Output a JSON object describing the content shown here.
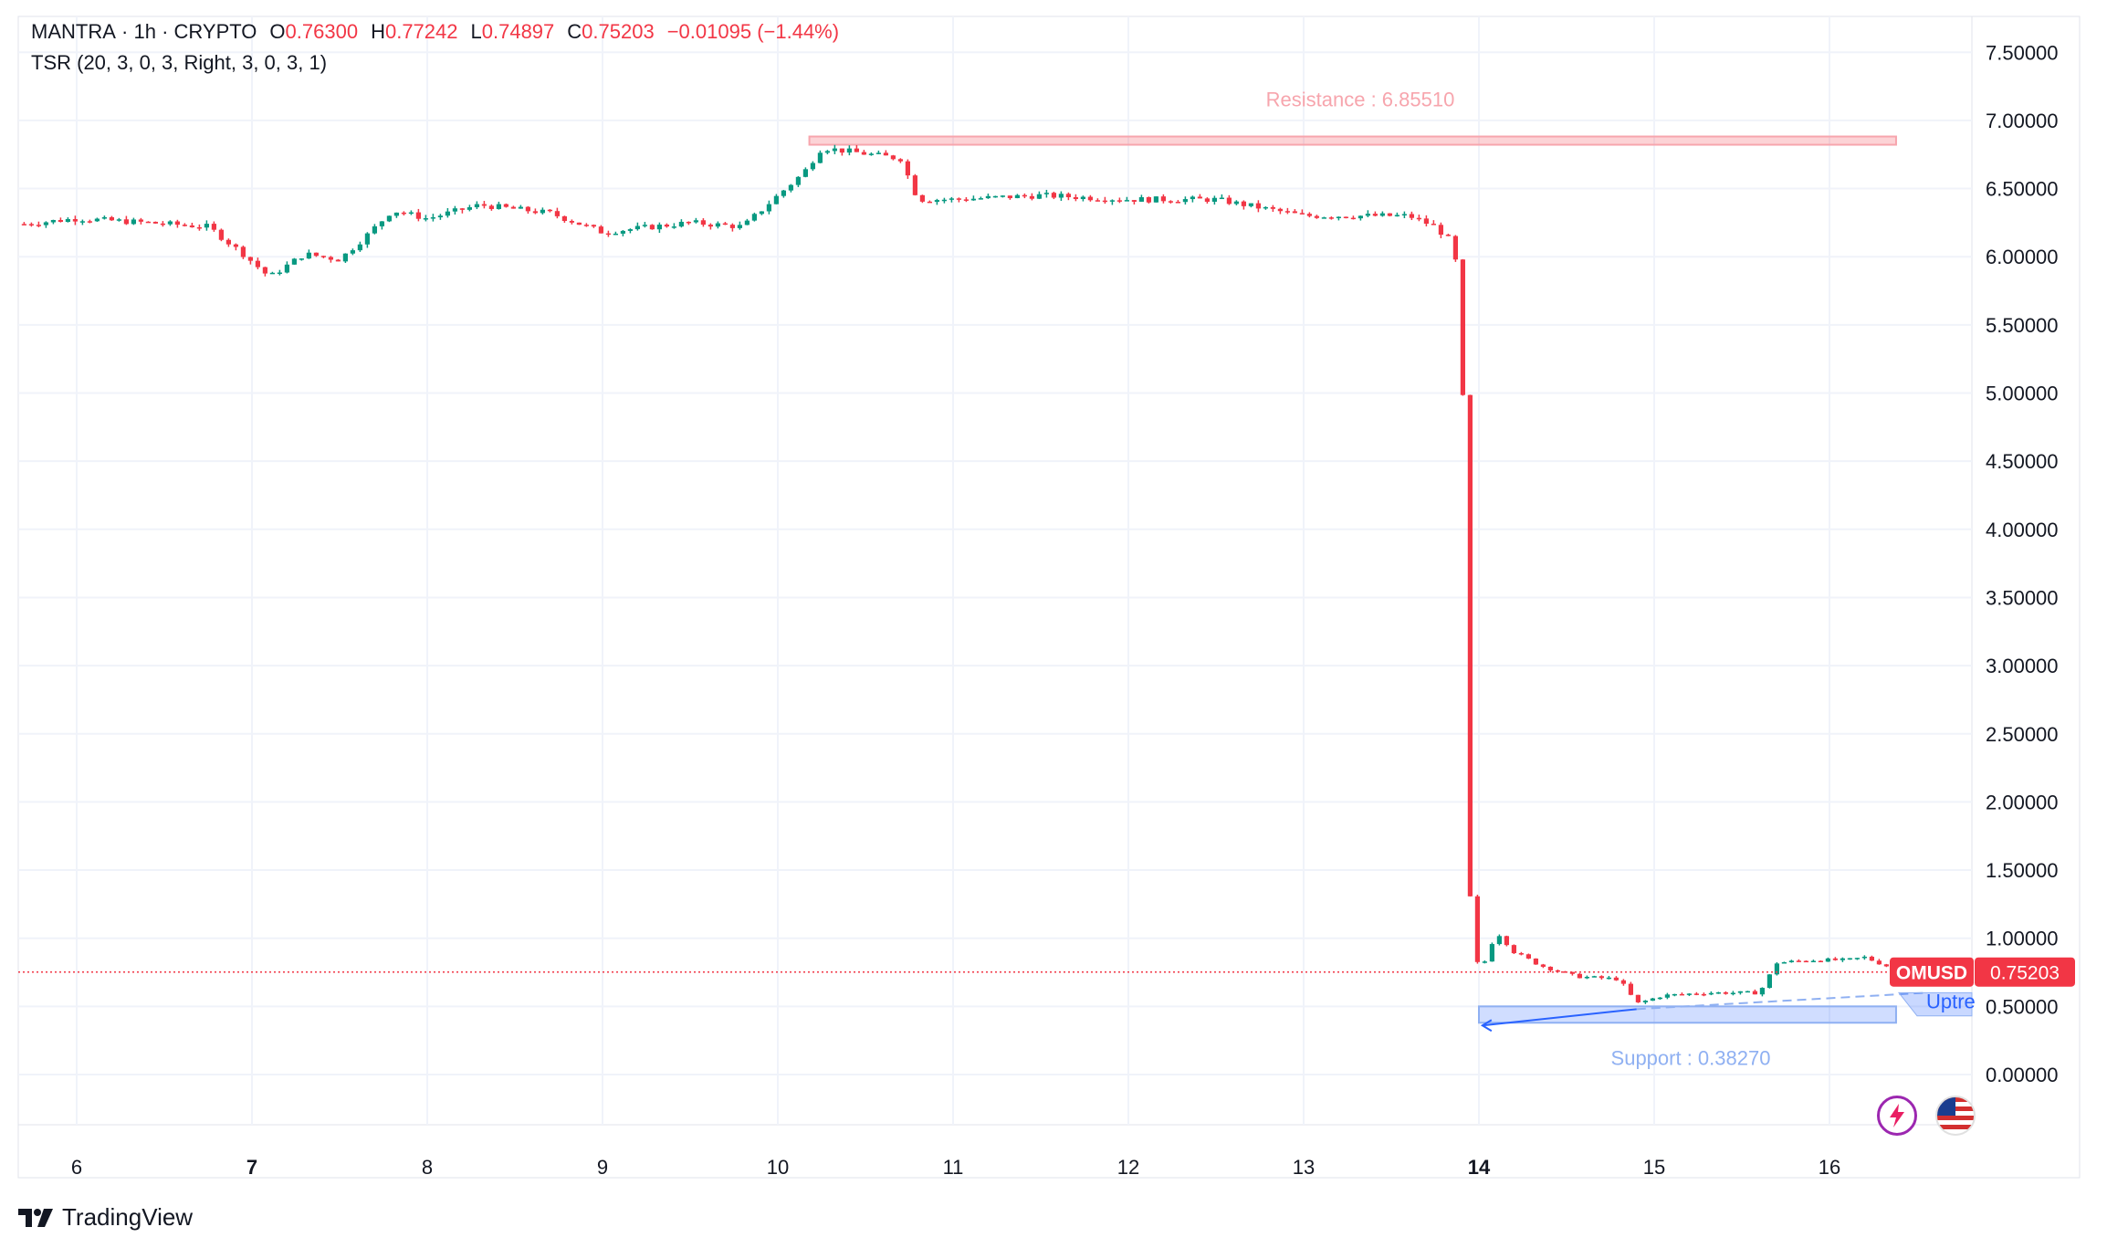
{
  "header": {
    "symbol": "MANTRA",
    "interval": "1h",
    "exchange": "CRYPTO",
    "separator": "·",
    "o_label": "O",
    "o_value": "0.76300",
    "h_label": "H",
    "h_value": "0.77242",
    "l_label": "L",
    "l_value": "0.74897",
    "c_label": "C",
    "c_value": "0.75203",
    "change": "−0.01095 (−1.44%)",
    "indicator": "TSR (20, 3, 0, 3, Right, 3, 0, 3, 1)"
  },
  "price_tag": {
    "symbol": "OMUSD",
    "value": "0.75203"
  },
  "annotations": {
    "resistance_label": "Resistance : 6.85510",
    "support_label": "Support : 0.38270",
    "uptrend_label": "Uptre"
  },
  "brand": {
    "name": "TradingView"
  },
  "icons": [
    "lightning-icon",
    "us-flag-icon",
    "tradingview-logo-icon"
  ],
  "colors": {
    "up": "#089981",
    "down": "#f23645",
    "resistance": "#f7a5ad",
    "support": "#8fb0f2",
    "grid": "#f0f3fa"
  },
  "chart_data": {
    "type": "candlestick",
    "x_ticks": [
      "6",
      "7",
      "8",
      "9",
      "10",
      "11",
      "12",
      "13",
      "14",
      "15",
      "16"
    ],
    "x_ticks_bold": [
      "7",
      "14"
    ],
    "y_ticks": [
      "7.50000",
      "7.00000",
      "6.50000",
      "6.00000",
      "5.50000",
      "5.00000",
      "4.50000",
      "4.00000",
      "3.50000",
      "3.00000",
      "2.50000",
      "2.00000",
      "1.50000",
      "1.00000",
      "0.50000",
      "0.00000"
    ],
    "ylim": [
      0,
      7.5
    ],
    "last_price": 0.75203,
    "resistance": 6.8551,
    "support": 0.3827,
    "candle_anchors": [
      {
        "t": 5.7,
        "p": 6.24
      },
      {
        "t": 6.0,
        "p": 6.28
      },
      {
        "t": 6.4,
        "p": 6.25
      },
      {
        "t": 6.75,
        "p": 6.22
      },
      {
        "t": 6.95,
        "p": 6.02
      },
      {
        "t": 7.1,
        "p": 5.85
      },
      {
        "t": 7.3,
        "p": 6.02
      },
      {
        "t": 7.5,
        "p": 5.98
      },
      {
        "t": 7.65,
        "p": 6.15
      },
      {
        "t": 7.8,
        "p": 6.34
      },
      {
        "t": 8.0,
        "p": 6.28
      },
      {
        "t": 8.3,
        "p": 6.38
      },
      {
        "t": 8.7,
        "p": 6.32
      },
      {
        "t": 9.0,
        "p": 6.18
      },
      {
        "t": 9.5,
        "p": 6.25
      },
      {
        "t": 9.8,
        "p": 6.22
      },
      {
        "t": 10.0,
        "p": 6.45
      },
      {
        "t": 10.15,
        "p": 6.62
      },
      {
        "t": 10.25,
        "p": 6.8
      },
      {
        "t": 10.7,
        "p": 6.72
      },
      {
        "t": 10.8,
        "p": 6.42
      },
      {
        "t": 11.0,
        "p": 6.42
      },
      {
        "t": 11.5,
        "p": 6.45
      },
      {
        "t": 12.0,
        "p": 6.42
      },
      {
        "t": 12.5,
        "p": 6.42
      },
      {
        "t": 13.0,
        "p": 6.3
      },
      {
        "t": 13.6,
        "p": 6.3
      },
      {
        "t": 13.75,
        "p": 6.22
      },
      {
        "t": 13.85,
        "p": 6.1
      },
      {
        "t": 13.9,
        "p": 5.7
      },
      {
        "t": 13.95,
        "p": 1.3
      },
      {
        "t": 14.0,
        "p": 0.72
      },
      {
        "t": 14.1,
        "p": 1.05
      },
      {
        "t": 14.2,
        "p": 0.9
      },
      {
        "t": 14.35,
        "p": 0.8
      },
      {
        "t": 14.55,
        "p": 0.72
      },
      {
        "t": 14.8,
        "p": 0.7
      },
      {
        "t": 14.9,
        "p": 0.52
      },
      {
        "t": 15.05,
        "p": 0.58
      },
      {
        "t": 15.3,
        "p": 0.6
      },
      {
        "t": 15.6,
        "p": 0.6
      },
      {
        "t": 15.7,
        "p": 0.82
      },
      {
        "t": 15.9,
        "p": 0.84
      },
      {
        "t": 16.1,
        "p": 0.84
      },
      {
        "t": 16.2,
        "p": 0.86
      },
      {
        "t": 16.4,
        "p": 0.76
      }
    ]
  }
}
